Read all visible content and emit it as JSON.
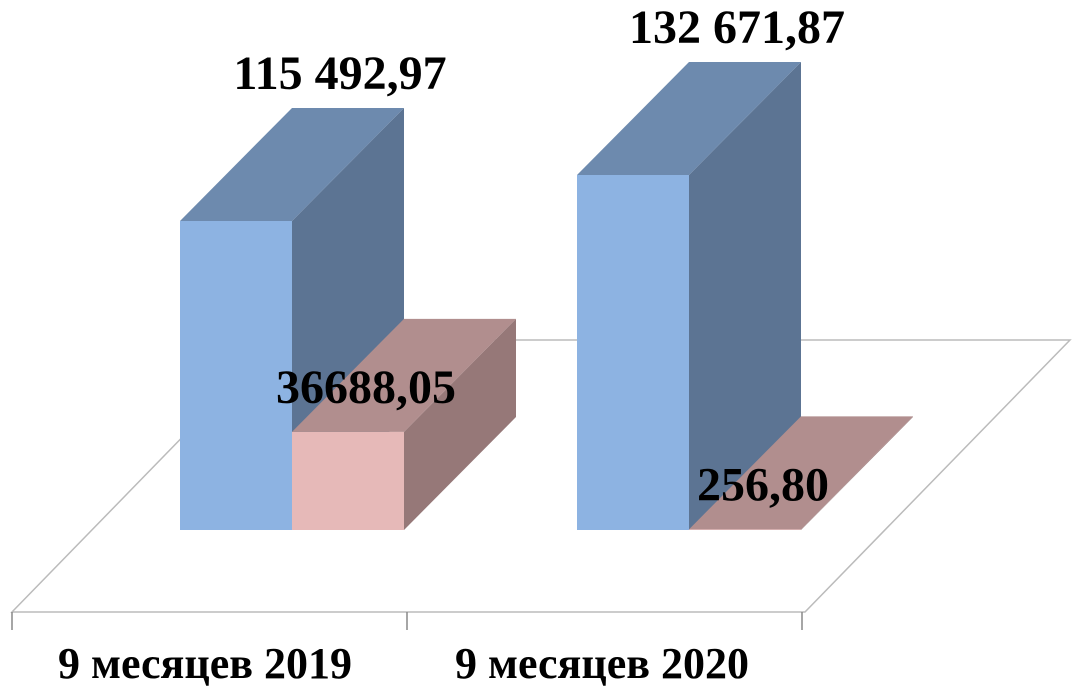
{
  "chart_data": {
    "type": "bar3d",
    "categories": [
      "9 месяцев 2019",
      "9 месяцев 2020"
    ],
    "series": [
      {
        "color": "#8db3e2",
        "values": [
          115492.97,
          132671.87
        ],
        "value_labels": [
          "115 492,97",
          "132 671,87"
        ]
      },
      {
        "color": "#e6b9b8",
        "values": [
          36688.05,
          256.8
        ],
        "value_labels": [
          "36688,05",
          "256,80"
        ]
      }
    ]
  }
}
